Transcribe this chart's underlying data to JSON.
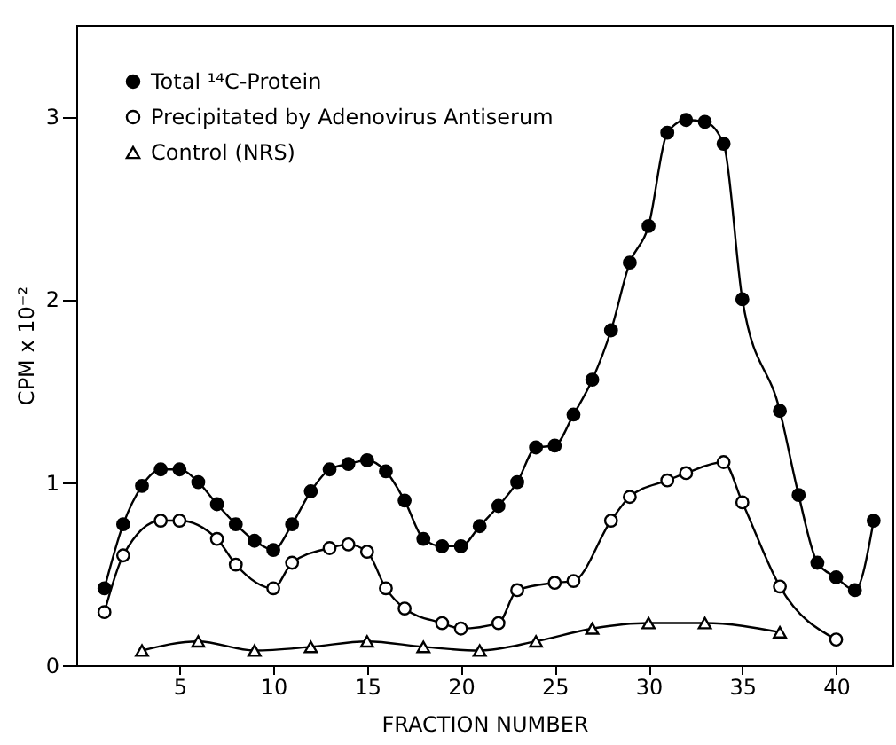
{
  "chart_data": {
    "type": "line",
    "xlabel": "FRACTION NUMBER",
    "ylabel": "CPM x 10⁻²",
    "xlim": [
      -0.5,
      43
    ],
    "xticks": [
      5,
      10,
      15,
      20,
      25,
      30,
      35,
      40
    ],
    "ylim": [
      0,
      3.5
    ],
    "yticks": [
      0,
      1,
      2,
      3
    ],
    "grid": false,
    "legend": "top left",
    "line_style": "solid",
    "series": [
      {
        "name": "Total ¹⁴C-Protein",
        "color": "#000000",
        "marker": "circle",
        "x": [
          1,
          2,
          3,
          4,
          5,
          6,
          7,
          8,
          9,
          10,
          11,
          12,
          13,
          14,
          15,
          16,
          17,
          18,
          19,
          20,
          21,
          22,
          23,
          24,
          25,
          26,
          27,
          28,
          29,
          30,
          31,
          32,
          33,
          34,
          35,
          37,
          38,
          39,
          40,
          41,
          42
        ],
        "values": [
          0.42,
          0.77,
          0.98,
          1.07,
          1.07,
          1.0,
          0.88,
          0.77,
          0.68,
          0.63,
          0.77,
          0.95,
          1.07,
          1.1,
          1.12,
          1.06,
          0.9,
          0.69,
          0.65,
          0.65,
          0.76,
          0.87,
          1.0,
          1.19,
          1.2,
          1.37,
          1.56,
          1.83,
          2.2,
          2.4,
          2.91,
          2.98,
          2.97,
          2.85,
          2.0,
          1.39,
          0.93,
          0.56,
          0.48,
          0.41,
          0.79
        ]
      },
      {
        "name": "Precipitated by Adenovirus Antiserum",
        "color": "#000000",
        "marker": "circle",
        "x": [
          1,
          2,
          4,
          5,
          7,
          8,
          10,
          11,
          13,
          14,
          15,
          16,
          17,
          19,
          20,
          22,
          23,
          25,
          26,
          28,
          29,
          31,
          32,
          34,
          35,
          37,
          40
        ],
        "values": [
          0.29,
          0.6,
          0.79,
          0.79,
          0.69,
          0.55,
          0.42,
          0.56,
          0.64,
          0.66,
          0.62,
          0.42,
          0.31,
          0.23,
          0.2,
          0.23,
          0.41,
          0.45,
          0.46,
          0.79,
          0.92,
          1.01,
          1.05,
          1.11,
          0.89,
          0.43,
          0.14
        ]
      },
      {
        "name": "Control (NRS)",
        "color": "#000000",
        "marker": "triangle",
        "x": [
          3,
          6,
          9,
          12,
          15,
          18,
          21,
          24,
          27,
          30,
          33,
          37
        ],
        "values": [
          0.08,
          0.13,
          0.08,
          0.1,
          0.13,
          0.1,
          0.08,
          0.13,
          0.2,
          0.23,
          0.23,
          0.18
        ]
      }
    ]
  }
}
